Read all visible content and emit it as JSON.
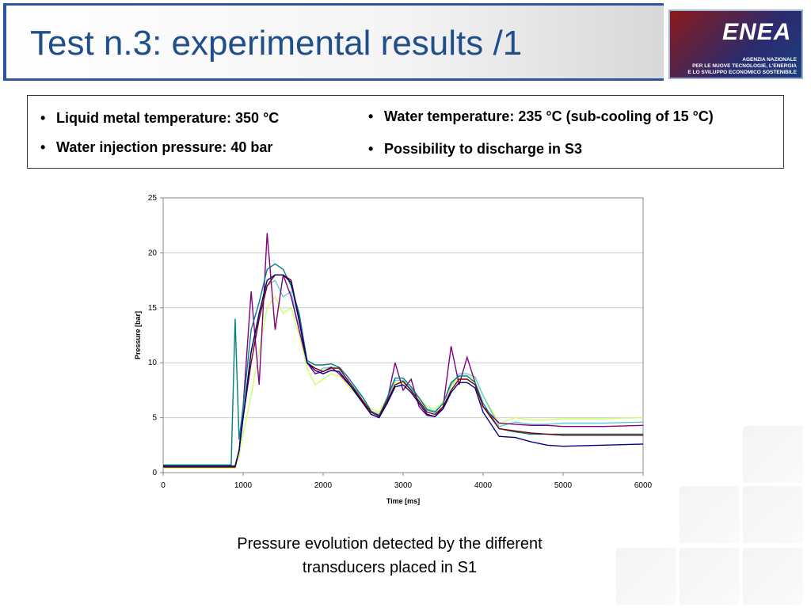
{
  "header": {
    "title": "Test n.3: experimental results /1",
    "logo": "ENEA",
    "logo_caption": [
      "AGENZIA NAZIONALE",
      "PER LE NUOVE TECNOLOGIE, L'ENERGIA",
      "E LO SVILUPPO ECONOMICO SOSTENIBILE"
    ]
  },
  "bullets": {
    "left": [
      "Liquid metal temperature: 350 °C",
      "Water injection pressure: 40 bar"
    ],
    "right": [
      "Water temperature: 235 °C (sub-cooling of 15 °C)",
      "Possibility to discharge in S3"
    ]
  },
  "caption": [
    "Pressure evolution detected by the different",
    "transducers placed in S1"
  ],
  "chart_data": {
    "type": "line",
    "x_label": "Time [ms]",
    "y_label": "Pressure [bar]",
    "xlim": [
      0,
      6000
    ],
    "ylim": [
      0,
      25
    ],
    "xticks": [
      0,
      1000,
      2000,
      3000,
      4000,
      5000,
      6000
    ],
    "yticks": [
      0,
      5,
      10,
      15,
      20,
      25
    ],
    "grid": true,
    "x": [
      0,
      500,
      850,
      900,
      950,
      1000,
      1100,
      1200,
      1300,
      1400,
      1500,
      1600,
      1700,
      1800,
      1900,
      2000,
      2100,
      2200,
      2300,
      2400,
      2500,
      2600,
      2700,
      2800,
      2900,
      3000,
      3100,
      3200,
      3300,
      3400,
      3500,
      3600,
      3700,
      3800,
      3900,
      4000,
      4200,
      4400,
      4600,
      4800,
      5000,
      5500,
      6000
    ],
    "series": [
      {
        "color": "#ccff66",
        "values": [
          0.4,
          0.4,
          0.4,
          0.4,
          1.5,
          3.5,
          7,
          11,
          15,
          16,
          14.5,
          15,
          12.5,
          9.5,
          8,
          8.5,
          9,
          8.8,
          8,
          7.2,
          6.5,
          5.8,
          5.5,
          6.8,
          8.2,
          8.2,
          7.5,
          6.8,
          6,
          5.8,
          6.5,
          7.8,
          8.8,
          8.8,
          8.6,
          7,
          4.5,
          5,
          4.8,
          4.8,
          4.9,
          4.9,
          5
        ]
      },
      {
        "color": "#66cccc",
        "values": [
          0.6,
          0.6,
          0.6,
          0.6,
          2,
          5,
          11,
          14,
          17,
          17.5,
          16,
          16.5,
          13,
          10,
          9,
          9.5,
          9.6,
          9.5,
          8.5,
          7.6,
          6.8,
          5.6,
          5.3,
          6.7,
          8.4,
          8.4,
          7.6,
          6.8,
          5.8,
          5.6,
          6.3,
          8,
          9,
          9,
          8.7,
          7,
          4.2,
          4.6,
          4.4,
          4.4,
          4.5,
          4.5,
          4.6
        ]
      },
      {
        "color": "#800080",
        "values": [
          0.6,
          0.6,
          0.6,
          0.6,
          2,
          6,
          16.5,
          8,
          21.8,
          13,
          18,
          16,
          13,
          10,
          9,
          9.2,
          9.6,
          9,
          8.2,
          7.4,
          6.4,
          5.5,
          5.1,
          6.5,
          10,
          7.5,
          8.5,
          6,
          5.2,
          5.1,
          6,
          11.5,
          8,
          10.5,
          8.2,
          6,
          4.5,
          4.4,
          4.3,
          4.3,
          4.2,
          4.2,
          4.3
        ]
      },
      {
        "color": "#008080",
        "values": [
          0.7,
          0.7,
          0.7,
          14,
          3,
          6,
          13,
          15.5,
          18.5,
          19,
          18.5,
          17,
          14.5,
          10.2,
          9.8,
          9.8,
          9.9,
          9.6,
          8.8,
          7.8,
          6.8,
          5.6,
          5.1,
          6.8,
          8.6,
          8.6,
          7.8,
          6.8,
          5.7,
          5.5,
          6.3,
          8.2,
          8.8,
          8.8,
          8.2,
          6.3,
          4,
          3.7,
          3.5,
          3.5,
          3.5,
          3.5,
          3.5
        ]
      },
      {
        "color": "#800000",
        "values": [
          0.5,
          0.5,
          0.5,
          0.5,
          2,
          5,
          10,
          14,
          17,
          18,
          18,
          17.5,
          14,
          10,
          9.5,
          9.2,
          9.5,
          9.5,
          8.5,
          7.5,
          6.5,
          5.5,
          5.2,
          6.5,
          8,
          8.3,
          7.5,
          6.5,
          5.5,
          5.3,
          6,
          7.5,
          8.5,
          8.5,
          8,
          6,
          4,
          3.8,
          3.6,
          3.5,
          3.4,
          3.4,
          3.4
        ]
      },
      {
        "color": "#000080",
        "values": [
          0.6,
          0.6,
          0.6,
          0.6,
          2,
          5,
          11,
          14.5,
          17.5,
          18,
          18,
          17.3,
          13.8,
          10,
          9.3,
          9,
          9.3,
          9.2,
          8.3,
          7.3,
          6.3,
          5.3,
          5,
          6.3,
          7.8,
          8,
          7.3,
          6.3,
          5.3,
          5.1,
          5.8,
          7.3,
          8.2,
          8.2,
          7.7,
          5.5,
          3.3,
          3.2,
          2.8,
          2.5,
          2.4,
          2.5,
          2.6
        ]
      }
    ]
  }
}
